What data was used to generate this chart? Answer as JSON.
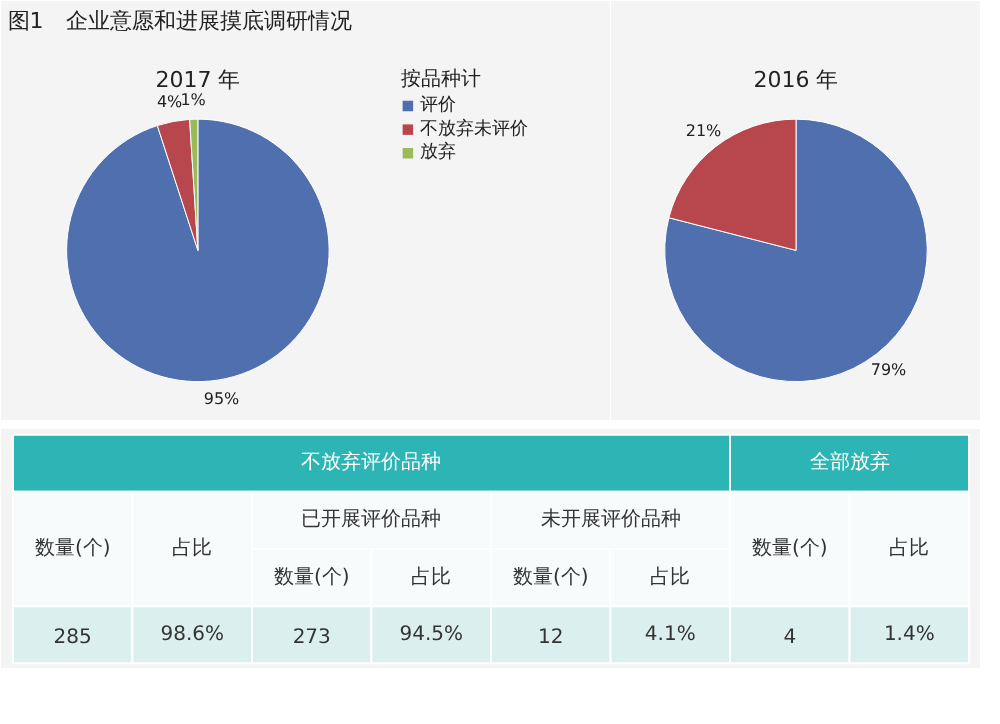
{
  "chart_data": [
    {
      "type": "pie",
      "title": "图1　企业意愿和进展摸底调研情况",
      "subtitle": "2017 年",
      "legend_title": "按品种计",
      "legend": "right",
      "categories": [
        "评价",
        "不放弃未评价",
        "放弃"
      ],
      "values": [
        95,
        4,
        1
      ],
      "colors": [
        "#4f6fae",
        "#b8474d",
        "#9bbb59"
      ],
      "value_labels": [
        "95%",
        "4%",
        "1%"
      ]
    },
    {
      "type": "pie",
      "subtitle": "2016 年",
      "categories": [
        null,
        null
      ],
      "values": [
        79,
        21
      ],
      "colors": [
        "#4f6fae",
        "#b8474d"
      ],
      "value_labels": [
        "79%",
        "21%"
      ]
    },
    {
      "type": "other",
      "annotations": [
        "不放弃评价品种",
        "全部放弃",
        "数量(个)",
        "占比",
        "已开展评价品种",
        "未开展评价品种",
        "数量(个)",
        "占比",
        "数量(个)",
        "占比",
        "数量(个)",
        "占比",
        "285",
        "98.6%",
        "273",
        "94.5%",
        "12",
        "4.1%",
        "4",
        "1.4%"
      ]
    }
  ]
}
